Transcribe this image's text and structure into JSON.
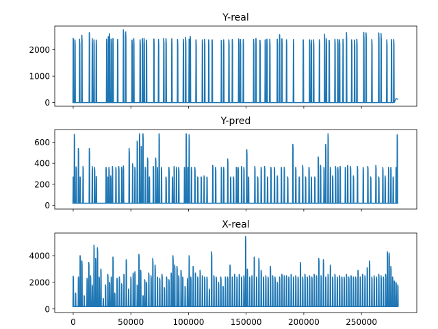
{
  "chart_data": [
    {
      "type": "line",
      "title": "Y-real",
      "xlabel": "",
      "ylabel": "",
      "xlim": [
        -16000,
        298000
      ],
      "ylim": [
        -140,
        2900
      ],
      "y_ticks": [
        0,
        1000,
        2000
      ],
      "x_ticks": [
        0,
        50000,
        100000,
        150000,
        200000,
        250000
      ],
      "show_x_tick_labels": false,
      "baseline": 0,
      "color": "#1f77b4",
      "spikes": [
        [
          0,
          2440
        ],
        [
          1500,
          2380
        ],
        [
          5500,
          2400
        ],
        [
          7500,
          2550
        ],
        [
          14000,
          2650
        ],
        [
          16500,
          2430
        ],
        [
          18000,
          2380
        ],
        [
          20000,
          2370
        ],
        [
          29000,
          2400
        ],
        [
          30500,
          2500
        ],
        [
          31500,
          2610
        ],
        [
          33000,
          2400
        ],
        [
          34500,
          2430
        ],
        [
          38500,
          2390
        ],
        [
          43500,
          2760
        ],
        [
          45500,
          2680
        ],
        [
          51000,
          2370
        ],
        [
          52500,
          2430
        ],
        [
          58000,
          2380
        ],
        [
          60000,
          2430
        ],
        [
          61500,
          2430
        ],
        [
          63500,
          2370
        ],
        [
          70000,
          2410
        ],
        [
          74000,
          2390
        ],
        [
          78500,
          2440
        ],
        [
          80500,
          2420
        ],
        [
          85500,
          2420
        ],
        [
          90500,
          2390
        ],
        [
          95500,
          2400
        ],
        [
          97500,
          2470
        ],
        [
          100500,
          2400
        ],
        [
          101500,
          2510
        ],
        [
          106500,
          2380
        ],
        [
          112000,
          2380
        ],
        [
          114000,
          2400
        ],
        [
          117500,
          2380
        ],
        [
          120500,
          2380
        ],
        [
          128500,
          2360
        ],
        [
          130500,
          2380
        ],
        [
          135000,
          2380
        ],
        [
          138000,
          2390
        ],
        [
          143500,
          2410
        ],
        [
          145000,
          2390
        ],
        [
          147500,
          2390
        ],
        [
          156500,
          2390
        ],
        [
          158500,
          2430
        ],
        [
          162000,
          2360
        ],
        [
          166500,
          2380
        ],
        [
          168000,
          2400
        ],
        [
          170500,
          2400
        ],
        [
          177000,
          2400
        ],
        [
          179000,
          2570
        ],
        [
          181000,
          2420
        ],
        [
          185000,
          2380
        ],
        [
          191000,
          2390
        ],
        [
          199500,
          2380
        ],
        [
          205000,
          2380
        ],
        [
          206500,
          2370
        ],
        [
          208500,
          2380
        ],
        [
          213500,
          2380
        ],
        [
          218000,
          2590
        ],
        [
          219500,
          2420
        ],
        [
          222000,
          2360
        ],
        [
          227000,
          2400
        ],
        [
          229500,
          2390
        ],
        [
          231000,
          2380
        ],
        [
          234000,
          2400
        ],
        [
          237000,
          2650
        ],
        [
          241500,
          2380
        ],
        [
          244000,
          2370
        ],
        [
          246000,
          2400
        ],
        [
          252000,
          2660
        ],
        [
          254000,
          2640
        ],
        [
          259000,
          2390
        ],
        [
          265000,
          2640
        ],
        [
          267000,
          2620
        ],
        [
          272000,
          2380
        ],
        [
          276000,
          2390
        ],
        [
          278000,
          2390
        ]
      ],
      "tail": [
        [
          280000,
          150
        ],
        [
          281000,
          130
        ],
        [
          282000,
          130
        ]
      ]
    },
    {
      "type": "line",
      "title": "Y-pred",
      "xlabel": "",
      "ylabel": "",
      "xlim": [
        -16000,
        298000
      ],
      "ylim": [
        -35,
        720
      ],
      "y_ticks": [
        0,
        200,
        400,
        600
      ],
      "x_ticks": [
        0,
        50000,
        100000,
        150000,
        200000,
        250000
      ],
      "show_x_tick_labels": false,
      "baseline": 20,
      "color": "#1f77b4",
      "spikes": [
        [
          0,
          270
        ],
        [
          1000,
          675
        ],
        [
          2500,
          365
        ],
        [
          4500,
          540
        ],
        [
          6000,
          270
        ],
        [
          8500,
          370
        ],
        [
          14000,
          540
        ],
        [
          16500,
          370
        ],
        [
          18500,
          360
        ],
        [
          20000,
          275
        ],
        [
          28500,
          360
        ],
        [
          30000,
          270
        ],
        [
          31000,
          360
        ],
        [
          32500,
          280
        ],
        [
          34000,
          370
        ],
        [
          37000,
          360
        ],
        [
          39500,
          370
        ],
        [
          42000,
          360
        ],
        [
          43500,
          375
        ],
        [
          48500,
          540
        ],
        [
          51500,
          395
        ],
        [
          53500,
          360
        ],
        [
          55500,
          610
        ],
        [
          57500,
          680
        ],
        [
          59000,
          560
        ],
        [
          60500,
          680
        ],
        [
          62500,
          360
        ],
        [
          64500,
          450
        ],
        [
          66000,
          270
        ],
        [
          69500,
          370
        ],
        [
          71500,
          450
        ],
        [
          73000,
          360
        ],
        [
          74500,
          680
        ],
        [
          76500,
          360
        ],
        [
          80500,
          270
        ],
        [
          83000,
          360
        ],
        [
          86000,
          270
        ],
        [
          87500,
          370
        ],
        [
          89500,
          360
        ],
        [
          91500,
          360
        ],
        [
          96500,
          360
        ],
        [
          98000,
          680
        ],
        [
          99500,
          360
        ],
        [
          100500,
          670
        ],
        [
          102500,
          360
        ],
        [
          105500,
          360
        ],
        [
          108000,
          270
        ],
        [
          111000,
          270
        ],
        [
          113500,
          280
        ],
        [
          116000,
          270
        ],
        [
          121000,
          380
        ],
        [
          123500,
          360
        ],
        [
          128500,
          360
        ],
        [
          130500,
          360
        ],
        [
          134000,
          440
        ],
        [
          136500,
          270
        ],
        [
          139000,
          270
        ],
        [
          141500,
          360
        ],
        [
          143000,
          360
        ],
        [
          146000,
          370
        ],
        [
          148000,
          360
        ],
        [
          150500,
          530
        ],
        [
          152000,
          270
        ],
        [
          157500,
          370
        ],
        [
          160000,
          270
        ],
        [
          163000,
          360
        ],
        [
          166000,
          370
        ],
        [
          168500,
          270
        ],
        [
          171500,
          360
        ],
        [
          174500,
          360
        ],
        [
          177000,
          280
        ],
        [
          180500,
          360
        ],
        [
          183000,
          360
        ],
        [
          186000,
          270
        ],
        [
          190500,
          580
        ],
        [
          193000,
          360
        ],
        [
          196000,
          270
        ],
        [
          199000,
          380
        ],
        [
          201500,
          270
        ],
        [
          204500,
          360
        ],
        [
          206500,
          270
        ],
        [
          209500,
          270
        ],
        [
          212500,
          460
        ],
        [
          214500,
          380
        ],
        [
          217500,
          360
        ],
        [
          219000,
          580
        ],
        [
          221000,
          680
        ],
        [
          223000,
          360
        ],
        [
          225000,
          280
        ],
        [
          227500,
          370
        ],
        [
          229500,
          360
        ],
        [
          231500,
          370
        ],
        [
          236000,
          360
        ],
        [
          238000,
          380
        ],
        [
          240500,
          370
        ],
        [
          243000,
          280
        ],
        [
          246500,
          370
        ],
        [
          251500,
          360
        ],
        [
          255500,
          370
        ],
        [
          258000,
          270
        ],
        [
          262500,
          380
        ],
        [
          265000,
          270
        ],
        [
          268500,
          360
        ],
        [
          270500,
          280
        ],
        [
          273500,
          360
        ],
        [
          275500,
          360
        ],
        [
          277500,
          270
        ],
        [
          280000,
          360
        ],
        [
          281000,
          670
        ]
      ],
      "tail": []
    },
    {
      "type": "line",
      "title": "X-real",
      "xlabel": "",
      "ylabel": "",
      "xlim": [
        -16000,
        298000
      ],
      "ylim": [
        -270,
        5700
      ],
      "y_ticks": [
        0,
        2000,
        4000
      ],
      "x_ticks": [
        0,
        50000,
        100000,
        150000,
        200000,
        250000
      ],
      "x_tick_labels": [
        "0",
        "50000",
        "100000",
        "150000",
        "200000",
        "250000"
      ],
      "show_x_tick_labels": true,
      "baseline": 180,
      "color": "#1f77b4",
      "spikes": [
        [
          0,
          2450
        ],
        [
          2000,
          1200
        ],
        [
          4500,
          2400
        ],
        [
          6000,
          4000
        ],
        [
          7500,
          3600
        ],
        [
          9500,
          1000
        ],
        [
          12000,
          2300
        ],
        [
          13500,
          3500
        ],
        [
          15000,
          2500
        ],
        [
          16500,
          1800
        ],
        [
          18000,
          4800
        ],
        [
          19500,
          3800
        ],
        [
          21000,
          4600
        ],
        [
          22500,
          2400
        ],
        [
          24000,
          3000
        ],
        [
          26000,
          800
        ],
        [
          28000,
          1800
        ],
        [
          30000,
          2600
        ],
        [
          31500,
          2000
        ],
        [
          33000,
          2400
        ],
        [
          34500,
          3900
        ],
        [
          36000,
          1200
        ],
        [
          38000,
          2300
        ],
        [
          40000,
          2400
        ],
        [
          42000,
          1900
        ],
        [
          44000,
          2600
        ],
        [
          46000,
          3700
        ],
        [
          48000,
          1500
        ],
        [
          50000,
          2400
        ],
        [
          52000,
          2700
        ],
        [
          53500,
          2800
        ],
        [
          55500,
          1800
        ],
        [
          57000,
          4100
        ],
        [
          58500,
          2900
        ],
        [
          60500,
          1000
        ],
        [
          62000,
          2200
        ],
        [
          63500,
          2000
        ],
        [
          65500,
          2700
        ],
        [
          67500,
          2500
        ],
        [
          69000,
          3800
        ],
        [
          71000,
          3300
        ],
        [
          73000,
          2400
        ],
        [
          75000,
          2300
        ],
        [
          77000,
          2600
        ],
        [
          79000,
          1600
        ],
        [
          81000,
          2400
        ],
        [
          83000,
          2200
        ],
        [
          85000,
          2700
        ],
        [
          86500,
          4000
        ],
        [
          88000,
          3300
        ],
        [
          90000,
          3200
        ],
        [
          91500,
          2500
        ],
        [
          93500,
          2900
        ],
        [
          95000,
          2400
        ],
        [
          97000,
          1700
        ],
        [
          99000,
          2300
        ],
        [
          100500,
          4000
        ],
        [
          102000,
          2400
        ],
        [
          104000,
          3200
        ],
        [
          106000,
          2700
        ],
        [
          108000,
          2400
        ],
        [
          110000,
          2900
        ],
        [
          112000,
          2500
        ],
        [
          114000,
          2400
        ],
        [
          116000,
          2400
        ],
        [
          118000,
          1500
        ],
        [
          120000,
          4300
        ],
        [
          122000,
          2500
        ],
        [
          124000,
          2400
        ],
        [
          126000,
          2000
        ],
        [
          128000,
          2400
        ],
        [
          130000,
          1700
        ],
        [
          132000,
          2400
        ],
        [
          134000,
          2400
        ],
        [
          136000,
          3300
        ],
        [
          138000,
          2400
        ],
        [
          140000,
          2600
        ],
        [
          142000,
          2400
        ],
        [
          144000,
          2600
        ],
        [
          146000,
          2400
        ],
        [
          148000,
          2500
        ],
        [
          149500,
          5450
        ],
        [
          151000,
          3000
        ],
        [
          153000,
          2400
        ],
        [
          155000,
          2500
        ],
        [
          157000,
          3900
        ],
        [
          159000,
          2400
        ],
        [
          161000,
          3800
        ],
        [
          163000,
          2900
        ],
        [
          165000,
          2400
        ],
        [
          167000,
          2500
        ],
        [
          169000,
          2400
        ],
        [
          171000,
          3200
        ],
        [
          173000,
          2500
        ],
        [
          175000,
          2400
        ],
        [
          177000,
          2000
        ],
        [
          179000,
          2400
        ],
        [
          181000,
          2600
        ],
        [
          183000,
          2500
        ],
        [
          185000,
          2500
        ],
        [
          187000,
          2400
        ],
        [
          189000,
          2600
        ],
        [
          191000,
          2400
        ],
        [
          193000,
          2500
        ],
        [
          195000,
          2400
        ],
        [
          197000,
          3500
        ],
        [
          199000,
          2400
        ],
        [
          201000,
          2600
        ],
        [
          203000,
          2400
        ],
        [
          205000,
          2500
        ],
        [
          207000,
          2400
        ],
        [
          209000,
          2600
        ],
        [
          211000,
          2500
        ],
        [
          213000,
          3800
        ],
        [
          215000,
          2500
        ],
        [
          217000,
          3700
        ],
        [
          219000,
          2400
        ],
        [
          221000,
          2600
        ],
        [
          223000,
          3300
        ],
        [
          225000,
          2400
        ],
        [
          227000,
          2600
        ],
        [
          229000,
          2400
        ],
        [
          231000,
          2500
        ],
        [
          233000,
          2400
        ],
        [
          235000,
          2400
        ],
        [
          237000,
          2600
        ],
        [
          239000,
          2400
        ],
        [
          241000,
          2500
        ],
        [
          243000,
          2400
        ],
        [
          245000,
          2400
        ],
        [
          247000,
          2900
        ],
        [
          249000,
          2400
        ],
        [
          251000,
          2600
        ],
        [
          253000,
          2500
        ],
        [
          255000,
          3100
        ],
        [
          257000,
          3600
        ],
        [
          259000,
          2400
        ],
        [
          261000,
          2500
        ],
        [
          263000,
          2400
        ],
        [
          265000,
          2600
        ],
        [
          267000,
          2500
        ],
        [
          269000,
          2400
        ],
        [
          271000,
          2600
        ],
        [
          272500,
          4300
        ],
        [
          274000,
          4200
        ],
        [
          275500,
          3200
        ],
        [
          277000,
          2400
        ],
        [
          278500,
          2100
        ],
        [
          280000,
          2000
        ],
        [
          281500,
          1800
        ]
      ],
      "tail": []
    }
  ]
}
